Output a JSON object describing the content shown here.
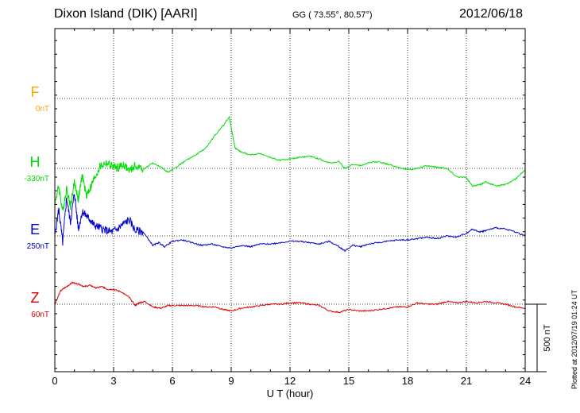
{
  "header": {
    "station": "Dixon Island (DIK)  [AARI]",
    "coords": "GG ( 73.55°,  80.57°)",
    "date": "2012/06/18"
  },
  "footer": {
    "plotted": "Plotted at 2012/07/19 01:24 UT"
  },
  "chart_data": {
    "type": "line",
    "xlabel": "U T (hour)",
    "xlim": [
      0,
      24
    ],
    "xticks": [
      0,
      3,
      6,
      9,
      12,
      15,
      18,
      21,
      24
    ],
    "scale_bar": "500 nT",
    "colors": {
      "F": "#ffa500",
      "H": "#00dd00",
      "E": "#0000cc",
      "Z": "#dd0000"
    },
    "series": [
      {
        "name": "F",
        "offset_label": "0nT",
        "x": [],
        "y": []
      },
      {
        "name": "H",
        "offset_label": "-330nT",
        "x": [
          0,
          0.2,
          0.4,
          0.6,
          0.8,
          1.0,
          1.2,
          1.4,
          1.6,
          1.8,
          2.0,
          2.3,
          2.6,
          2.9,
          3.2,
          3.5,
          3.8,
          4.1,
          4.5,
          5.0,
          5.5,
          5.8,
          6.2,
          6.7,
          7.2,
          7.7,
          8.2,
          8.6,
          8.9,
          9.2,
          9.5,
          10.0,
          10.5,
          11.0,
          11.5,
          12.0,
          12.5,
          13.0,
          13.5,
          14.0,
          14.5,
          14.8,
          15.2,
          15.6,
          16.0,
          16.5,
          17.0,
          17.5,
          18.0,
          18.5,
          19.0,
          19.5,
          20.0,
          20.5,
          21.0,
          21.3,
          21.7,
          22.0,
          22.5,
          23.0,
          23.5,
          24.0
        ],
        "y": [
          -260,
          -130,
          -320,
          -150,
          -280,
          -100,
          -230,
          -50,
          -200,
          -150,
          -80,
          10,
          40,
          20,
          0,
          30,
          -20,
          20,
          -10,
          40,
          0,
          -30,
          10,
          60,
          100,
          150,
          250,
          320,
          380,
          150,
          120,
          100,
          110,
          80,
          60,
          70,
          80,
          90,
          70,
          40,
          50,
          0,
          30,
          20,
          40,
          50,
          30,
          10,
          -10,
          0,
          20,
          10,
          0,
          -60,
          -70,
          -130,
          -120,
          -100,
          -130,
          -120,
          -80,
          -10
        ]
      },
      {
        "name": "E",
        "offset_label": "250nT",
        "x": [
          0,
          0.2,
          0.4,
          0.6,
          0.8,
          1.0,
          1.2,
          1.4,
          1.6,
          1.8,
          2.0,
          2.3,
          2.6,
          2.9,
          3.2,
          3.5,
          3.8,
          4.1,
          4.5,
          5.0,
          5.3,
          5.6,
          6.0,
          6.5,
          7.0,
          7.5,
          8.0,
          8.5,
          9.0,
          9.5,
          10.0,
          10.5,
          11.0,
          11.5,
          12.0,
          12.5,
          13.0,
          13.5,
          14.0,
          14.5,
          14.8,
          15.2,
          15.6,
          16.0,
          16.5,
          17.0,
          17.5,
          18.0,
          18.5,
          19.0,
          19.5,
          20.0,
          20.5,
          21.0,
          21.3,
          21.7,
          22.0,
          22.5,
          23.0,
          23.5,
          24.0
        ],
        "y": [
          0,
          200,
          -50,
          280,
          100,
          320,
          50,
          180,
          150,
          120,
          80,
          60,
          40,
          30,
          50,
          90,
          120,
          40,
          30,
          -70,
          -50,
          -80,
          -40,
          -30,
          -50,
          -70,
          -60,
          -80,
          -90,
          -70,
          -80,
          -60,
          -60,
          -50,
          -40,
          -40,
          -50,
          -60,
          -40,
          -80,
          -110,
          -70,
          -80,
          -60,
          -50,
          -40,
          -30,
          -30,
          -20,
          -10,
          -20,
          0,
          -10,
          20,
          50,
          30,
          40,
          60,
          50,
          30,
          0
        ]
      },
      {
        "name": "Z",
        "offset_label": "60nT",
        "x": [
          0,
          0.3,
          0.6,
          0.9,
          1.2,
          1.5,
          1.8,
          2.1,
          2.4,
          2.7,
          3.0,
          3.4,
          3.8,
          4.1,
          4.3,
          4.6,
          5.0,
          5.4,
          5.8,
          6.2,
          6.7,
          7.2,
          7.7,
          8.2,
          8.6,
          9.0,
          9.5,
          10.0,
          10.5,
          11.0,
          11.5,
          12.0,
          12.5,
          13.0,
          13.5,
          14.0,
          14.5,
          15.0,
          15.5,
          16.0,
          16.5,
          17.0,
          17.5,
          18.0,
          18.5,
          19.0,
          19.5,
          20.0,
          20.5,
          21.0,
          21.5,
          22.0,
          22.5,
          23.0,
          23.5,
          24.0
        ],
        "y": [
          0,
          100,
          130,
          160,
          150,
          130,
          140,
          120,
          130,
          110,
          110,
          90,
          50,
          -10,
          10,
          20,
          -20,
          -30,
          -10,
          -10,
          -10,
          -10,
          -20,
          -20,
          -40,
          -50,
          -30,
          -20,
          -10,
          0,
          0,
          10,
          10,
          0,
          -10,
          -50,
          -60,
          -40,
          -50,
          -50,
          -40,
          -30,
          -20,
          -20,
          10,
          0,
          0,
          20,
          10,
          20,
          10,
          20,
          10,
          0,
          -20,
          -30
        ]
      }
    ]
  }
}
